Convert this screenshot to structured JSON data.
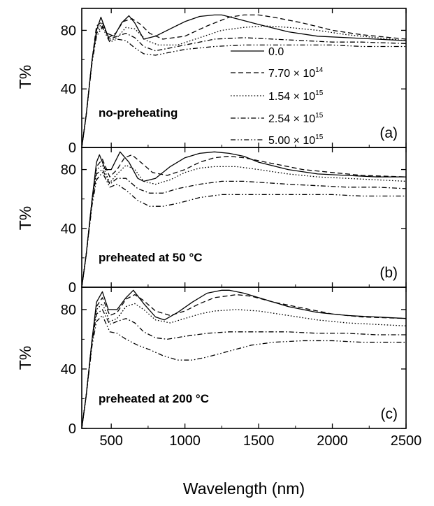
{
  "chart_data": {
    "type": "line",
    "xlabel": "Wavelength (nm)",
    "ylabel": "T%",
    "xlim": [
      300,
      2500
    ],
    "ylim": [
      0,
      95
    ],
    "xticks": [
      "500",
      "1000",
      "1500",
      "2000",
      "2500"
    ],
    "yticks": [
      "0",
      "40",
      "80"
    ],
    "legend": {
      "placement": "inside top panel, right",
      "entries": [
        {
          "text": "0.0",
          "dash": "solid"
        },
        {
          "text": "7.70 × 10",
          "exp": "14",
          "dash": "dashed"
        },
        {
          "text": "1.54 × 10",
          "exp": "15",
          "dash": "dotted"
        },
        {
          "text": "2.54 × 10",
          "exp": "15",
          "dash": "dash-dot"
        },
        {
          "text": "5.00 × 10",
          "exp": "15",
          "dash": "dash-dot-dot"
        }
      ]
    },
    "panels": [
      {
        "tag": "(a)",
        "note": "no-preheating",
        "series": [
          {
            "dash": "solid",
            "x": [
              300,
              330,
              370,
              400,
              430,
              470,
              520,
              570,
              620,
              660,
              720,
              800,
              900,
              1000,
              1100,
              1200,
              1250,
              1350,
              1500,
              1700,
              1900,
              2100,
              2300,
              2500
            ],
            "y": [
              0,
              22,
              60,
              80,
              89,
              78,
              76,
              85,
              90,
              85,
              74,
              76,
              81,
              86,
              89.5,
              90.5,
              90.5,
              88,
              84,
              79,
              76,
              75,
              74,
              73
            ]
          },
          {
            "dash": "dashed",
            "x": [
              300,
              330,
              370,
              400,
              440,
              480,
              530,
              580,
              640,
              700,
              760,
              850,
              1000,
              1150,
              1300,
              1400,
              1500,
              1600,
              1800,
              2000,
              2200,
              2500
            ],
            "y": [
              0,
              22,
              60,
              83,
              86,
              75,
              78,
              86,
              88,
              84,
              78,
              74,
              76,
              83,
              89,
              90.5,
              90.5,
              89,
              85,
              80,
              77,
              74
            ]
          },
          {
            "dash": "dotted",
            "x": [
              300,
              330,
              370,
              400,
              440,
              490,
              540,
              600,
              660,
              740,
              820,
              950,
              1100,
              1250,
              1400,
              1550,
              1700,
              1900,
              2100,
              2300,
              2500
            ],
            "y": [
              0,
              22,
              60,
              80,
              85,
              73,
              75,
              82,
              81,
              73,
              70,
              70,
              75,
              80,
              82,
              83,
              82,
              80,
              77,
              75,
              73
            ]
          },
          {
            "dash": "dash-dot",
            "x": [
              300,
              330,
              370,
              400,
              440,
              490,
              540,
              600,
              660,
              720,
              800,
              900,
              1050,
              1200,
              1400,
              1600,
              1800,
              2000,
              2200,
              2500
            ],
            "y": [
              0,
              22,
              60,
              78,
              83,
              74,
              76,
              78,
              75,
              69,
              66,
              68,
              71,
              74,
              75,
              74,
              73,
              72,
              72,
              71
            ]
          },
          {
            "dash": "dash-dot-dot",
            "x": [
              300,
              330,
              370,
              400,
              440,
              490,
              540,
              600,
              660,
              720,
              800,
              900,
              1000,
              1200,
              1400,
              1600,
              1800,
              2000,
              2200,
              2500
            ],
            "y": [
              0,
              22,
              58,
              76,
              82,
              72,
              74,
              73,
              68,
              64,
              63,
              65,
              67,
              69,
              70,
              70,
              70,
              70,
              69,
              69
            ]
          }
        ]
      },
      {
        "tag": "(b)",
        "note": "preheated at 50 °C",
        "series": [
          {
            "dash": "solid",
            "x": [
              300,
              330,
              370,
              400,
              420,
              460,
              500,
              560,
              620,
              680,
              720,
              800,
              900,
              1000,
              1100,
              1200,
              1300,
              1400,
              1500,
              1700,
              1900,
              2100,
              2300,
              2500
            ],
            "y": [
              0,
              22,
              60,
              85,
              90,
              80,
              80,
              92,
              85,
              74,
              72,
              74,
              82,
              88,
              91,
              92,
              91,
              89,
              85,
              80,
              77,
              76,
              75,
              75
            ]
          },
          {
            "dash": "dashed",
            "x": [
              300,
              330,
              370,
              400,
              440,
              490,
              540,
              590,
              640,
              700,
              780,
              880,
              1000,
              1100,
              1200,
              1300,
              1400,
              1600,
              1800,
              2000,
              2200,
              2500
            ],
            "y": [
              0,
              22,
              60,
              82,
              87,
              75,
              80,
              88,
              90,
              85,
              78,
              76,
              80,
              85,
              88,
              89,
              88,
              84,
              80,
              78,
              76,
              75
            ]
          },
          {
            "dash": "dotted",
            "x": [
              300,
              330,
              370,
              400,
              440,
              490,
              540,
              600,
              660,
              720,
              800,
              900,
              1000,
              1100,
              1200,
              1350,
              1500,
              1700,
              1900,
              2100,
              2300,
              2500
            ],
            "y": [
              0,
              22,
              60,
              80,
              83,
              71,
              77,
              83,
              80,
              72,
              70,
              73,
              78,
              81,
              82,
              82,
              80,
              77,
              75,
              74,
              73,
              72
            ]
          },
          {
            "dash": "dash-dot",
            "x": [
              300,
              330,
              370,
              400,
              440,
              490,
              540,
              600,
              680,
              760,
              850,
              950,
              1100,
              1250,
              1400,
              1550,
              1700,
              1900,
              2100,
              2300,
              2500
            ],
            "y": [
              0,
              22,
              58,
              77,
              80,
              70,
              74,
              74,
              67,
              64,
              64,
              67,
              70,
              72,
              72,
              71,
              70,
              69,
              68,
              68,
              67
            ]
          },
          {
            "dash": "dash-dot-dot",
            "x": [
              300,
              330,
              370,
              400,
              440,
              490,
              540,
              600,
              680,
              760,
              850,
              950,
              1100,
              1250,
              1400,
              1600,
              1800,
              2000,
              2200,
              2500
            ],
            "y": [
              0,
              22,
              56,
              73,
              78,
              68,
              70,
              66,
              59,
              55,
              55,
              57,
              61,
              63,
              63,
              63,
              63,
              63,
              62,
              62
            ]
          }
        ]
      },
      {
        "tag": "(c)",
        "note": "preheated at 200 °C",
        "series": [
          {
            "dash": "solid",
            "x": [
              300,
              330,
              370,
              400,
              440,
              480,
              540,
              600,
              650,
              720,
              800,
              860,
              950,
              1050,
              1150,
              1250,
              1300,
              1400,
              1500,
              1700,
              1900,
              2100,
              2300,
              2500
            ],
            "y": [
              0,
              22,
              60,
              85,
              92,
              80,
              80,
              88,
              93,
              84,
              75,
              73,
              78,
              85,
              91,
              93,
              93,
              91,
              88,
              82,
              78,
              76,
              75,
              74
            ]
          },
          {
            "dash": "dashed",
            "x": [
              300,
              330,
              370,
              400,
              440,
              490,
              540,
              600,
              660,
              720,
              800,
              900,
              1000,
              1100,
              1200,
              1350,
              1450,
              1600,
              1800,
              2000,
              2200,
              2500
            ],
            "y": [
              0,
              22,
              60,
              82,
              88,
              76,
              78,
              87,
              90,
              86,
              79,
              76,
              79,
              84,
              88,
              90,
              89,
              85,
              81,
              77,
              75,
              74
            ]
          },
          {
            "dash": "dotted",
            "x": [
              300,
              330,
              370,
              400,
              440,
              490,
              540,
              600,
              660,
              720,
              800,
              900,
              1000,
              1100,
              1200,
              1350,
              1500,
              1700,
              1900,
              2100,
              2300,
              2500
            ],
            "y": [
              0,
              22,
              60,
              80,
              84,
              72,
              74,
              82,
              84,
              80,
              73,
              71,
              74,
              77,
              79,
              80,
              79,
              76,
              73,
              71,
              70,
              69
            ]
          },
          {
            "dash": "dash-dot",
            "x": [
              300,
              330,
              370,
              400,
              440,
              490,
              540,
              600,
              660,
              720,
              800,
              880,
              1000,
              1150,
              1300,
              1500,
              1700,
              1900,
              2100,
              2300,
              2500
            ],
            "y": [
              0,
              22,
              58,
              77,
              80,
              70,
              72,
              74,
              71,
              65,
              61,
              60,
              62,
              64,
              65,
              65,
              65,
              64,
              64,
              63,
              63
            ]
          },
          {
            "dash": "dash-dot-dot",
            "x": [
              300,
              330,
              370,
              400,
              440,
              490,
              540,
              600,
              680,
              760,
              850,
              950,
              1050,
              1150,
              1300,
              1450,
              1600,
              1800,
              2000,
              2200,
              2500
            ],
            "y": [
              0,
              22,
              56,
              72,
              76,
              65,
              64,
              60,
              56,
              53,
              49,
              46,
              46,
              48,
              52,
              56,
              58,
              59,
              59,
              58,
              58
            ]
          }
        ]
      }
    ]
  }
}
